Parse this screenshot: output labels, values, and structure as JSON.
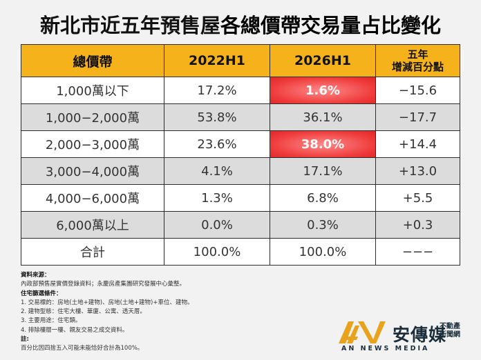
{
  "title": {
    "part1": "新北市近五年預售屋",
    "part2": "各總價帶交易量占比變化"
  },
  "table": {
    "headers": {
      "col1": "總價帶",
      "col2": "2022H1",
      "col3": "2026H1",
      "col4_line1": "五年",
      "col4_line2": "增減百分點"
    },
    "rows": [
      {
        "band": "1,000萬以下",
        "h2022": "17.2%",
        "h2026": "1.6%",
        "change": "−15.6"
      },
      {
        "band": "1,000−2,000萬",
        "h2022": "53.8%",
        "h2026": "36.1%",
        "change": "−17.7"
      },
      {
        "band": "2,000−3,000萬",
        "h2022": "23.6%",
        "h2026": "38.0%",
        "change": "+14.4"
      },
      {
        "band": "3,000−4,000萬",
        "h2022": "4.1%",
        "h2026": "17.1%",
        "change": "+13.0"
      },
      {
        "band": "4,000−6,000萬",
        "h2022": "1.3%",
        "h2026": "6.8%",
        "change": "+5.5"
      },
      {
        "band": "6,000萬以上",
        "h2022": "0.0%",
        "h2026": "0.3%",
        "change": "+0.3"
      },
      {
        "band": "合計",
        "h2022": "100.0%",
        "h2026": "100.0%",
        "change": "−−−"
      }
    ],
    "highlight_color": "#ef3b3b",
    "header_color": "#f6b21a"
  },
  "notes": {
    "source_heading": "資料來源：",
    "source_text": "內政部預售屋實價登錄資料；永慶房產集團研究發展中心彙整。",
    "criteria_heading": "住宅篩選條件：",
    "criteria": [
      "1. 交易標的：房地(土地+建物)、房地(土地+建物)+車位、建物。",
      "2. 建物型態：住宅大樓、華廈、公寓、透天厝。",
      "3. 主要用途：住宅類。",
      "4. 排除樓層一樓、親友交易之成交資料。"
    ],
    "note_heading": "註:",
    "note_text": "百分比因四捨五入可能未能恰好合計為100%。"
  },
  "logo": {
    "name": "安傳媒",
    "sub_line1": "不動產",
    "sub_line2": "新聞網",
    "english": "AN NEWS MEDIA",
    "icon": "an-logo-icon",
    "colors": {
      "gold": "#e9a21b",
      "navy": "#1b2d3a"
    }
  }
}
